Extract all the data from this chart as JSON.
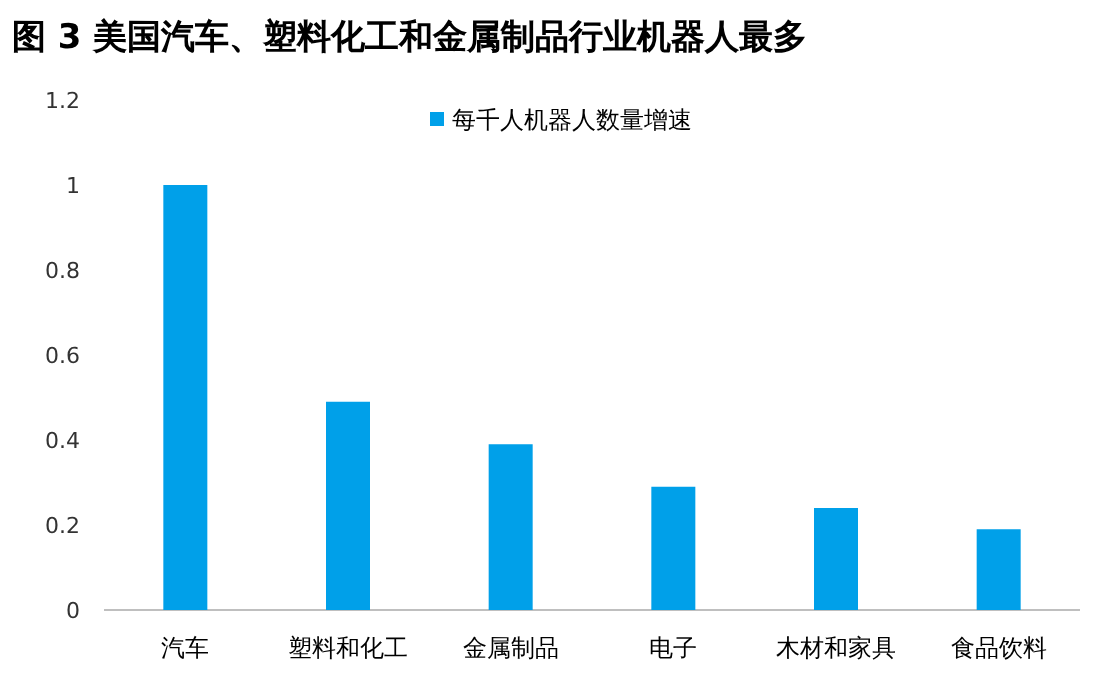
{
  "chart_data": {
    "type": "bar",
    "title": "图 3  美国汽车、塑料化工和金属制品行业机器人最多",
    "categories": [
      "汽车",
      "塑料和化工",
      "金属制品",
      "电子",
      "木材和家具",
      "食品饮料"
    ],
    "series": [
      {
        "name": "每千人机器人数量增速",
        "color": "#00a0e9",
        "values": [
          1,
          0.49,
          0.39,
          0.29,
          0.24,
          0.19
        ]
      }
    ],
    "ylim": [
      0,
      1.2
    ],
    "yticks": [
      0,
      0.2,
      0.4,
      0.6,
      0.8,
      1,
      1.2
    ],
    "legend": "top",
    "grid": false
  }
}
